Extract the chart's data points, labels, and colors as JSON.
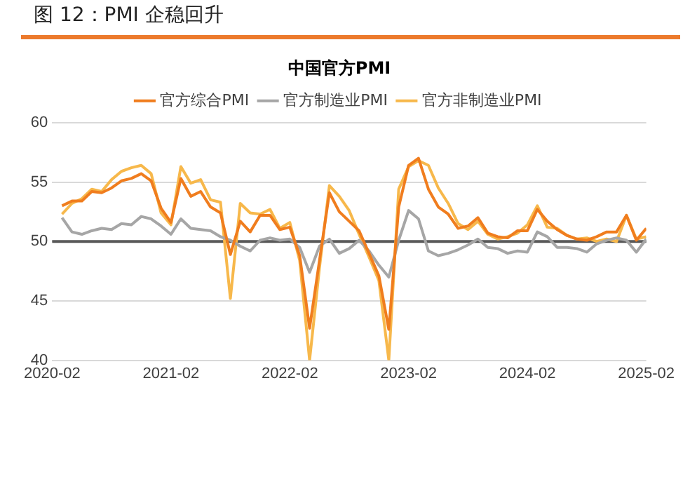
{
  "chart_data": {
    "type": "line",
    "title": "图 12：PMI 企稳回升",
    "subtitle": "中国官方PMI",
    "x": [
      "2020-03",
      "2020-04",
      "2020-05",
      "2020-06",
      "2020-07",
      "2020-08",
      "2020-09",
      "2020-10",
      "2020-11",
      "2020-12",
      "2021-01",
      "2021-02",
      "2021-03",
      "2021-04",
      "2021-05",
      "2021-06",
      "2021-07",
      "2021-08",
      "2021-09",
      "2021-10",
      "2021-11",
      "2021-12",
      "2022-01",
      "2022-02",
      "2022-03",
      "2022-04",
      "2022-05",
      "2022-06",
      "2022-07",
      "2022-08",
      "2022-09",
      "2022-10",
      "2022-11",
      "2022-12",
      "2023-01",
      "2023-02",
      "2023-03",
      "2023-04",
      "2023-05",
      "2023-06",
      "2023-07",
      "2023-08",
      "2023-09",
      "2023-10",
      "2023-11",
      "2023-12",
      "2024-01",
      "2024-02",
      "2024-03",
      "2024-04",
      "2024-05",
      "2024-06",
      "2024-07",
      "2024-08",
      "2024-09",
      "2024-10",
      "2024-11",
      "2024-12",
      "2025-01",
      "2025-02"
    ],
    "series": [
      {
        "name": "官方综合PMI",
        "color": "#f07d1e",
        "values": [
          53.0,
          53.4,
          53.4,
          54.2,
          54.1,
          54.5,
          55.1,
          55.3,
          55.7,
          55.1,
          52.8,
          51.6,
          55.3,
          53.8,
          54.2,
          52.9,
          52.4,
          48.9,
          51.7,
          50.8,
          52.2,
          52.2,
          51.0,
          51.2,
          48.8,
          42.7,
          48.4,
          54.1,
          52.5,
          51.7,
          50.9,
          49.0,
          47.1,
          42.6,
          52.9,
          56.4,
          57.0,
          54.4,
          52.9,
          52.3,
          51.1,
          51.3,
          52.0,
          50.7,
          50.4,
          50.3,
          50.9,
          50.9,
          52.7,
          51.7,
          51.0,
          50.5,
          50.2,
          50.1,
          50.4,
          50.8,
          50.8,
          52.2,
          50.1,
          51.1
        ]
      },
      {
        "name": "官方制造业PMI",
        "color": "#a6a6a6",
        "values": [
          52.0,
          50.8,
          50.6,
          50.9,
          51.1,
          51.0,
          51.5,
          51.4,
          52.1,
          51.9,
          51.3,
          50.6,
          51.9,
          51.1,
          51.0,
          50.9,
          50.4,
          50.1,
          49.6,
          49.2,
          50.1,
          50.3,
          50.1,
          50.2,
          49.5,
          47.4,
          49.6,
          50.2,
          49.0,
          49.4,
          50.1,
          49.2,
          48.0,
          47.0,
          50.1,
          52.6,
          51.9,
          49.2,
          48.8,
          49.0,
          49.3,
          49.7,
          50.2,
          49.5,
          49.4,
          49.0,
          49.2,
          49.1,
          50.8,
          50.4,
          49.5,
          49.5,
          49.4,
          49.1,
          49.8,
          50.1,
          50.3,
          50.1,
          49.1,
          50.2
        ]
      },
      {
        "name": "官方非制造业PMI",
        "color": "#f7b84b",
        "values": [
          52.3,
          53.2,
          53.6,
          54.4,
          54.2,
          55.2,
          55.9,
          56.2,
          56.4,
          55.7,
          52.4,
          51.4,
          56.3,
          54.9,
          55.2,
          53.5,
          53.3,
          45.2,
          53.2,
          52.4,
          52.3,
          52.7,
          51.1,
          51.6,
          48.4,
          40.0,
          47.8,
          54.7,
          53.8,
          52.6,
          50.6,
          48.7,
          46.7,
          40.0,
          54.4,
          56.3,
          56.8,
          56.4,
          54.5,
          53.2,
          51.5,
          51.0,
          51.7,
          50.6,
          50.2,
          50.4,
          50.7,
          51.4,
          53.0,
          51.2,
          51.1,
          50.5,
          50.2,
          50.3,
          50.0,
          50.2,
          50.0,
          52.2,
          50.2,
          50.4
        ]
      }
    ],
    "xlim": [
      "2020-02",
      "2025-02"
    ],
    "xticks": [
      "2020-02",
      "2021-02",
      "2022-02",
      "2023-02",
      "2024-02",
      "2025-02"
    ],
    "ylim": [
      40,
      60
    ],
    "yticks": [
      40,
      45,
      50,
      55,
      60
    ],
    "ref_lines": [
      {
        "axis": "y",
        "value": 50,
        "color": "#595959"
      }
    ],
    "grid": "y",
    "legend": "top",
    "marker": "none",
    "line_style": "solid"
  }
}
